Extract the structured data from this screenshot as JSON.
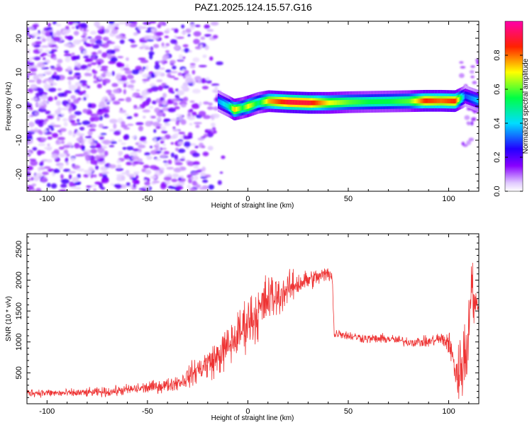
{
  "title": "PAZ1.2025.124.15.57.G16",
  "chart_data": [
    {
      "type": "heatmap",
      "xlabel": "Height of straight line (km)",
      "ylabel": "Frequency (Hz)",
      "xlim": [
        -110,
        115
      ],
      "ylim": [
        -25,
        25
      ],
      "xticks": [
        -100,
        -50,
        0,
        50,
        100
      ],
      "yticks": [
        -20,
        -10,
        0,
        10,
        20
      ],
      "colorbar": {
        "label": "Normalized spectral amplitude",
        "range": [
          0.0,
          1.0
        ],
        "ticks": [
          0.0,
          0.2,
          0.4,
          0.6,
          0.8
        ],
        "tick_labels": [
          "0.0",
          "0.2",
          "0.4",
          "0.6",
          "0.8"
        ],
        "colormap": "rainbow (white-violet-blue-cyan-green-yellow-red-magenta)"
      },
      "features": {
        "noise_region_x": [
          -110,
          -15
        ],
        "noise_amplitude": [
          0.0,
          0.2
        ],
        "signal_line": [
          {
            "x": -15,
            "freq": 1.5,
            "amp": 0.35
          },
          {
            "x": -10,
            "freq": 0.0,
            "amp": 0.45
          },
          {
            "x": -7,
            "freq": -1.0,
            "amp": 0.75
          },
          {
            "x": -3,
            "freq": -0.5,
            "amp": 0.55
          },
          {
            "x": 0,
            "freq": 0.0,
            "amp": 0.7
          },
          {
            "x": 5,
            "freq": 1.0,
            "amp": 0.5
          },
          {
            "x": 10,
            "freq": 1.5,
            "amp": 0.75
          },
          {
            "x": 20,
            "freq": 1.2,
            "amp": 0.9
          },
          {
            "x": 30,
            "freq": 1.0,
            "amp": 0.9
          },
          {
            "x": 40,
            "freq": 1.0,
            "amp": 0.7
          },
          {
            "x": 50,
            "freq": 1.2,
            "amp": 0.6
          },
          {
            "x": 60,
            "freq": 1.3,
            "amp": 0.55
          },
          {
            "x": 70,
            "freq": 1.4,
            "amp": 0.55
          },
          {
            "x": 80,
            "freq": 1.5,
            "amp": 0.6
          },
          {
            "x": 88,
            "freq": 1.6,
            "amp": 0.85
          },
          {
            "x": 96,
            "freq": 1.6,
            "amp": 0.8
          },
          {
            "x": 103,
            "freq": 1.5,
            "amp": 0.85
          },
          {
            "x": 108,
            "freq": 3.0,
            "amp": 0.3
          },
          {
            "x": 115,
            "freq": 1.5,
            "amp": 0.4
          }
        ]
      }
    },
    {
      "type": "line",
      "xlabel": "Height of straight line (km)",
      "ylabel": "SNR (10 * v/v)",
      "xlim": [
        -110,
        115
      ],
      "ylim": [
        0,
        2750
      ],
      "xticks": [
        -100,
        -50,
        0,
        50,
        100
      ],
      "yticks": [
        500,
        1000,
        1500,
        2000,
        2500
      ],
      "color": "#ee3333",
      "series": [
        {
          "x": [
            -110,
            -90,
            -70,
            -50,
            -40,
            -32,
            -25,
            -15,
            -5,
            0,
            5,
            10,
            15,
            20,
            25,
            30,
            35,
            40,
            42,
            43,
            45,
            50,
            60,
            70,
            80,
            90,
            95,
            100,
            103,
            105,
            107,
            109,
            111,
            113,
            115
          ],
          "y": [
            180,
            170,
            190,
            260,
            300,
            380,
            550,
            750,
            1100,
            1350,
            1450,
            1700,
            1750,
            1850,
            1950,
            2000,
            2050,
            2100,
            2100,
            1100,
            1150,
            1100,
            1050,
            1050,
            1000,
            1000,
            1050,
            1000,
            600,
            400,
            800,
            700,
            2000,
            1600,
            1500
          ],
          "spread": [
            60,
            60,
            70,
            90,
            100,
            130,
            200,
            280,
            350,
            400,
            400,
            400,
            300,
            250,
            200,
            150,
            130,
            120,
            120,
            80,
            70,
            70,
            70,
            70,
            70,
            80,
            100,
            180,
            250,
            500,
            700,
            500,
            500,
            300,
            150
          ]
        }
      ]
    }
  ]
}
